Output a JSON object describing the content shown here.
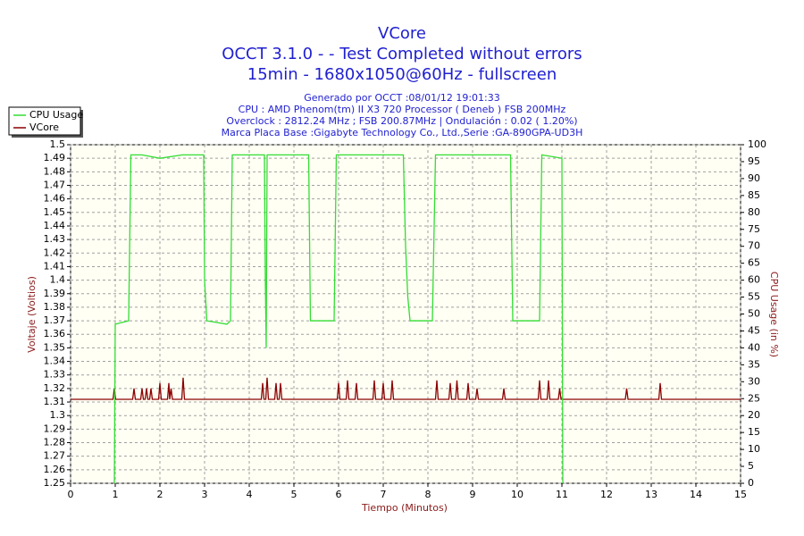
{
  "chart_data": {
    "type": "line",
    "title": "VCore",
    "title_lines": [
      "OCCT 3.1.0 -  - Test Completed without errors",
      "15min - 1680x1050@60Hz - fullscreen"
    ],
    "subtitle_lines": [
      "Generado por OCCT :08/01/12 19:01:33",
      "CPU : AMD Phenom(tm) II X3 720 Processor ( Deneb ) FSB 200MHz",
      "Overclock : 2812.24 MHz ; FSB 200.87MHz | Ondulación : 0.02 ( 1.20%)",
      "Marca Placa Base :Gigabyte Technology Co., Ltd.,Serie :GA-890GPA-UD3H"
    ],
    "xlabel": "Tiempo (Minutos)",
    "ylabel": "Voltaje (Voltios)",
    "y2label": "CPU Usage (in %)",
    "xlim": [
      0,
      15
    ],
    "xticks": [
      0,
      1,
      2,
      3,
      4,
      5,
      6,
      7,
      8,
      9,
      10,
      11,
      12,
      13,
      14,
      15
    ],
    "ylim": [
      1.25,
      1.5
    ],
    "yticks": [
      1.25,
      1.26,
      1.27,
      1.28,
      1.29,
      1.3,
      1.31,
      1.32,
      1.33,
      1.34,
      1.35,
      1.36,
      1.37,
      1.38,
      1.39,
      1.4,
      1.41,
      1.42,
      1.43,
      1.44,
      1.45,
      1.46,
      1.47,
      1.48,
      1.49,
      1.5
    ],
    "y2lim": [
      0,
      100
    ],
    "y2ticks": [
      0,
      5,
      10,
      15,
      20,
      25,
      30,
      35,
      40,
      45,
      50,
      55,
      60,
      65,
      70,
      75,
      80,
      85,
      90,
      95,
      100
    ],
    "grid": true,
    "legend": "top-left",
    "series": [
      {
        "name": "CPU Usage",
        "color": "#33dd33",
        "axis": "y2",
        "x": [
          0.98,
          1.0,
          1.3,
          1.35,
          1.6,
          2.0,
          2.5,
          2.98,
          3.0,
          3.05,
          3.5,
          3.58,
          3.62,
          4.0,
          4.34,
          4.36,
          4.38,
          4.4,
          5.0,
          5.33,
          5.37,
          5.9,
          5.95,
          6.5,
          7.0,
          7.45,
          7.5,
          7.55,
          7.6,
          8.1,
          8.17,
          8.5,
          9.0,
          9.5,
          9.85,
          9.9,
          10.5,
          10.55,
          11.0,
          11.02
        ],
        "values": [
          0,
          47,
          48,
          97,
          97,
          96,
          97,
          97,
          60,
          48,
          47,
          48,
          97,
          97,
          97,
          60,
          40,
          97,
          97,
          97,
          48,
          48,
          97,
          97,
          97,
          97,
          70,
          55,
          48,
          48,
          97,
          97,
          97,
          97,
          97,
          48,
          48,
          97,
          96,
          0
        ]
      },
      {
        "name": "VCore",
        "color": "#8b0000",
        "x": [
          0,
          0.95,
          0.98,
          1.01,
          1.39,
          1.42,
          1.45,
          1.57,
          1.6,
          1.63,
          1.67,
          1.7,
          1.73,
          1.77,
          1.8,
          1.83,
          1.97,
          2.0,
          2.03,
          2.17,
          2.2,
          2.22,
          2.25,
          2.28,
          2.49,
          2.52,
          2.55,
          4.27,
          4.3,
          4.33,
          4.37,
          4.4,
          4.43,
          4.57,
          4.6,
          4.63,
          4.67,
          4.7,
          4.73,
          5.97,
          6.0,
          6.03,
          6.17,
          6.2,
          6.23,
          6.37,
          6.4,
          6.43,
          6.77,
          6.8,
          6.83,
          6.97,
          7.0,
          7.03,
          7.17,
          7.2,
          7.23,
          8.17,
          8.2,
          8.23,
          8.47,
          8.5,
          8.53,
          8.62,
          8.65,
          8.68,
          8.87,
          8.9,
          8.93,
          9.07,
          9.1,
          9.13,
          9.67,
          9.7,
          9.73,
          10.47,
          10.5,
          10.53,
          10.67,
          10.7,
          10.73,
          10.92,
          10.95,
          10.98,
          12.42,
          12.45,
          12.48,
          13.17,
          13.2,
          13.23,
          15
        ],
        "values": [
          1.312,
          1.312,
          1.32,
          1.312,
          1.312,
          1.32,
          1.312,
          1.312,
          1.32,
          1.312,
          1.312,
          1.32,
          1.312,
          1.312,
          1.32,
          1.312,
          1.312,
          1.324,
          1.312,
          1.312,
          1.324,
          1.312,
          1.32,
          1.312,
          1.312,
          1.328,
          1.312,
          1.312,
          1.324,
          1.312,
          1.312,
          1.328,
          1.312,
          1.312,
          1.324,
          1.312,
          1.312,
          1.324,
          1.312,
          1.312,
          1.324,
          1.312,
          1.312,
          1.326,
          1.312,
          1.312,
          1.324,
          1.312,
          1.312,
          1.326,
          1.312,
          1.312,
          1.324,
          1.312,
          1.312,
          1.326,
          1.312,
          1.312,
          1.326,
          1.312,
          1.312,
          1.324,
          1.312,
          1.312,
          1.326,
          1.312,
          1.312,
          1.324,
          1.312,
          1.312,
          1.32,
          1.312,
          1.312,
          1.32,
          1.312,
          1.312,
          1.326,
          1.312,
          1.312,
          1.326,
          1.312,
          1.312,
          1.32,
          1.312,
          1.312,
          1.32,
          1.312,
          1.312,
          1.324,
          1.312,
          1.312
        ]
      }
    ]
  }
}
